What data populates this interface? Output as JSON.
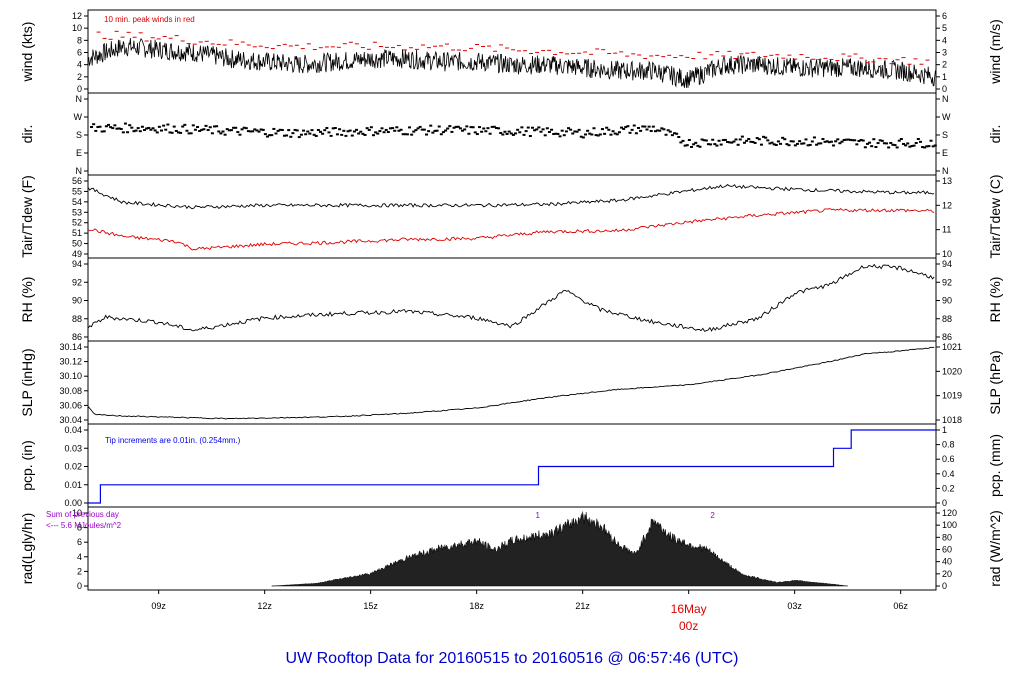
{
  "title": "UW Rooftop Data for 20160515  to  20160516 @ 06:57:46  (UTC)",
  "date_marker": {
    "day": "16May",
    "hour": "00z"
  },
  "x_ticks": [
    "09z",
    "12z",
    "15z",
    "18z",
    "21z",
    "03z",
    "06z"
  ],
  "colors": {
    "title": "#0000cc",
    "peak": "#dd0000",
    "tair": "#000000",
    "tdew": "#dd0000",
    "precip": "#0000ee",
    "note_violet": "#9900cc"
  },
  "chart_data": [
    {
      "id": "wind",
      "type": "line",
      "ylabel_left": "wind (kts)",
      "ylabel_right": "wind (m/s)",
      "yticks_left": [
        "0",
        "2",
        "4",
        "6",
        "8",
        "10",
        "12"
      ],
      "yticks_right": [
        "0",
        "1",
        "2",
        "3",
        "4",
        "5",
        "6"
      ],
      "ylim": [
        0,
        12
      ],
      "annotation": "10 min. peak winds in red",
      "series": [
        {
          "name": "wind",
          "x_hours": [
            7.0,
            8.0,
            9.0,
            10.0,
            11.0,
            12.0,
            13.0,
            14.0,
            15.0,
            16.0,
            17.0,
            18.0,
            19.0,
            20.0,
            21.0,
            22.0,
            23.0,
            24.0,
            25.0,
            26.0,
            27.0,
            28.0,
            29.0,
            30.0,
            31.0
          ],
          "values": [
            5,
            7,
            6.5,
            6,
            5,
            4.5,
            4,
            4.5,
            5,
            5,
            4.5,
            4.5,
            4,
            4,
            3.5,
            3,
            3,
            1.5,
            4,
            4,
            3.5,
            3.5,
            3.5,
            3,
            2
          ]
        },
        {
          "name": "10 min. peak",
          "x_hours": [
            7.0,
            9.0,
            11.0,
            13.0,
            15.0,
            17.0,
            19.0,
            21.0,
            23.0,
            25.0,
            27.0,
            29.0,
            31.0
          ],
          "values": [
            9,
            8.5,
            7.5,
            7,
            7,
            7,
            6.5,
            6,
            5.5,
            5.5,
            5.5,
            5,
            4.5
          ]
        }
      ]
    },
    {
      "id": "dir",
      "type": "scatter",
      "ylabel_left": "dir.",
      "ylabel_right": "dir.",
      "yticks_left": [
        "N",
        "E",
        "S",
        "W",
        "N"
      ],
      "yticks_right": [
        "N",
        "E",
        "S",
        "W",
        "N"
      ],
      "ylim": [
        0,
        360
      ],
      "series": [
        {
          "name": "direction",
          "x_hours": [
            7,
            9,
            11,
            13,
            15,
            17,
            19,
            21,
            23,
            24,
            25,
            27,
            29,
            31
          ],
          "values": [
            215,
            215,
            200,
            190,
            200,
            205,
            200,
            190,
            215,
            140,
            150,
            150,
            140,
            140
          ]
        }
      ]
    },
    {
      "id": "temp",
      "type": "line",
      "ylabel_left": "Tair/Tdew (F)",
      "ylabel_right": "Tair/Tdew (C)",
      "yticks_left": [
        "49",
        "50",
        "51",
        "52",
        "53",
        "54",
        "55",
        "56"
      ],
      "yticks_right": [
        "10",
        "11",
        "12",
        "13"
      ],
      "ylim": [
        49,
        56.5
      ],
      "series": [
        {
          "name": "Tair",
          "x_hours": [
            7,
            8,
            10,
            12,
            14,
            16,
            18,
            20,
            22,
            24,
            25,
            26,
            28,
            30,
            31
          ],
          "values": [
            55.8,
            54.3,
            53.8,
            54,
            54,
            54,
            54,
            54.1,
            54.5,
            55.5,
            56,
            55.8,
            55.5,
            55.3,
            55.3
          ]
        },
        {
          "name": "Tdew",
          "x_hours": [
            7,
            8,
            9.5,
            10,
            12,
            14,
            16,
            18,
            20,
            22,
            24,
            26,
            28,
            30,
            31
          ],
          "values": [
            51.6,
            50.8,
            50.3,
            49.5,
            50,
            50.2,
            50.5,
            50.6,
            51.3,
            51.4,
            52.3,
            53,
            53.5,
            53.5,
            53.4
          ]
        }
      ]
    },
    {
      "id": "rh",
      "type": "line",
      "ylabel_left": "RH (%)",
      "ylabel_right": "RH (%)",
      "yticks_left": [
        "86",
        "88",
        "90",
        "92",
        "94"
      ],
      "yticks_right": [
        "86",
        "88",
        "90",
        "92",
        "94"
      ],
      "ylim": [
        85.2,
        94
      ],
      "series": [
        {
          "name": "RH",
          "x_hours": [
            7,
            7.5,
            9,
            10,
            12,
            14,
            16,
            18,
            19,
            20.5,
            21.5,
            23,
            24.5,
            26,
            27,
            28,
            29,
            30,
            31
          ],
          "values": [
            86.3,
            87.6,
            87,
            86,
            87.5,
            88,
            88.3,
            87.5,
            86.5,
            90.8,
            88.5,
            87,
            86,
            87.5,
            90.5,
            91.5,
            93.8,
            93.5,
            92.3
          ]
        }
      ]
    },
    {
      "id": "slp",
      "type": "line",
      "ylabel_left": "SLP (inHg)",
      "ylabel_right": "SLP (hPa)",
      "yticks_left": [
        "30.04",
        "30.06",
        "30.08",
        "30.10",
        "30.12",
        "30.14"
      ],
      "yticks_right": [
        "1018",
        "1019",
        "1020",
        "1021"
      ],
      "ylim": [
        30.04,
        30.15
      ],
      "series": [
        {
          "name": "SLP",
          "x_hours": [
            7,
            7.2,
            8,
            11,
            14,
            16,
            18,
            20,
            22,
            24,
            26,
            28,
            29,
            30,
            31
          ],
          "values": [
            30.06,
            30.048,
            30.046,
            30.042,
            30.045,
            30.05,
            30.058,
            30.074,
            30.086,
            30.093,
            30.108,
            30.128,
            30.14,
            30.144,
            30.15
          ]
        }
      ]
    },
    {
      "id": "pcp",
      "type": "line",
      "ylabel_left": "pcp. (in)",
      "ylabel_right": "pcp. (mm)",
      "yticks_left": [
        "0.00",
        "0.01",
        "0.02",
        "0.03",
        "0.04"
      ],
      "yticks_right": [
        "0",
        "0.2",
        "0.4",
        "0.6",
        "0.8",
        "1"
      ],
      "ylim": [
        0,
        0.04
      ],
      "annotation": "Tip increments are 0.01in. (0.254mm.)",
      "series": [
        {
          "name": "precip",
          "x_hours": [
            7,
            7.35,
            7.35,
            19.75,
            19.75,
            28.1,
            28.1,
            28.6,
            28.6,
            31
          ],
          "values": [
            0,
            0,
            0.01,
            0.01,
            0.02,
            0.02,
            0.03,
            0.03,
            0.04,
            0.04
          ]
        }
      ]
    },
    {
      "id": "rad",
      "type": "area",
      "ylabel_left": "rad(Lgly/hr)",
      "ylabel_right": "rad (W/m^2)",
      "yticks_left": [
        "0",
        "2",
        "4",
        "6",
        "8",
        "10"
      ],
      "yticks_right": [
        "0",
        "20",
        "40",
        "60",
        "80",
        "100",
        "120"
      ],
      "ylim": [
        0,
        10.5
      ],
      "annotation": [
        "Sum of previous day",
        "<--- 5.6 MJoules/m^2"
      ],
      "markers": [
        "1",
        "2"
      ],
      "series": [
        {
          "name": "radiation",
          "x_hours": [
            12.2,
            13.5,
            14,
            15,
            16,
            17,
            18,
            18.5,
            19,
            20,
            20.5,
            21,
            21.5,
            22,
            22.5,
            23,
            23.5,
            24,
            24.5,
            25,
            25.5,
            26,
            26.5,
            27,
            28,
            28.5
          ],
          "values": [
            0,
            0.4,
            0.9,
            1.8,
            4,
            5.5,
            6.5,
            5.2,
            6.5,
            7.5,
            8.5,
            10,
            8.8,
            6,
            4.5,
            9.5,
            7,
            6,
            5.3,
            3.5,
            1.7,
            1.1,
            0.5,
            0.8,
            0.3,
            0
          ]
        }
      ]
    }
  ]
}
